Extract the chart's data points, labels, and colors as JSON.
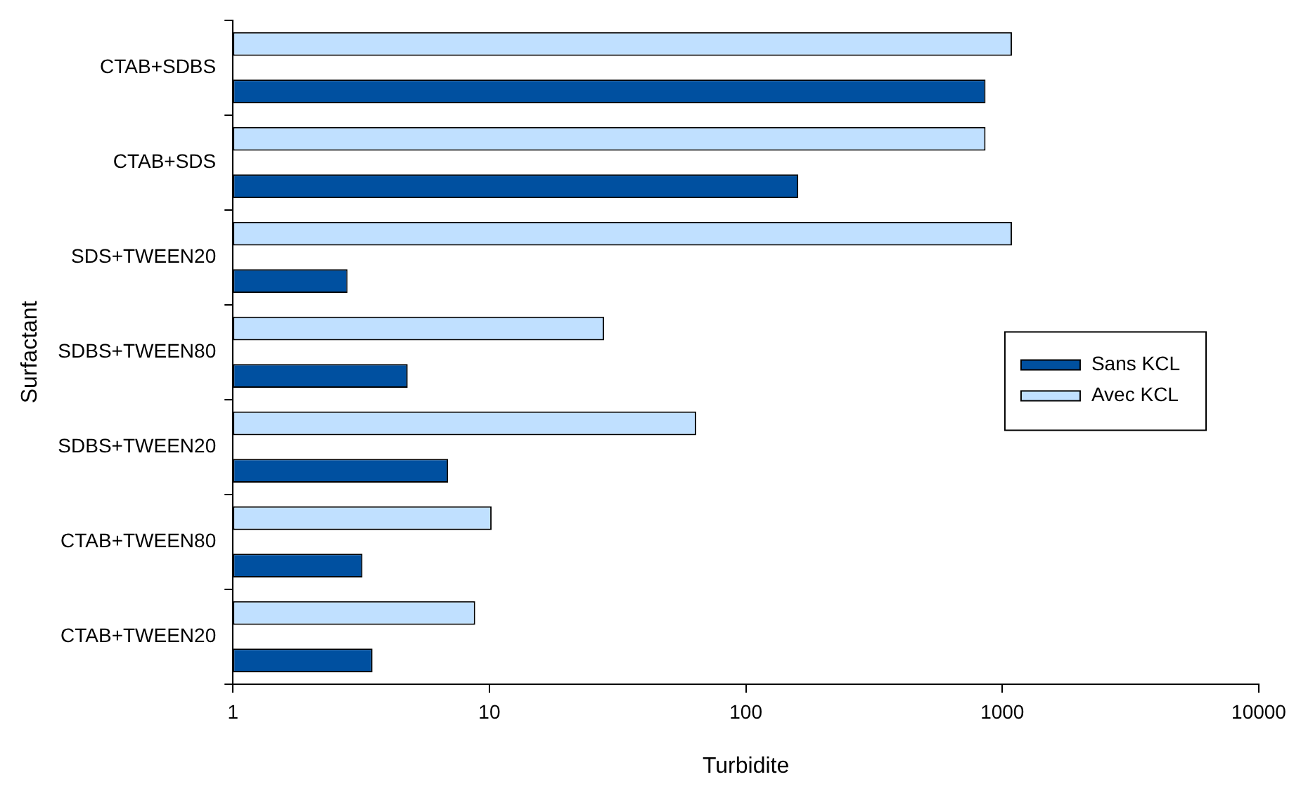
{
  "chart_data": {
    "type": "bar",
    "orientation": "horizontal",
    "log": "x",
    "xlabel": "Turbidite",
    "ylabel": "Surfactant",
    "categories": [
      "CTAB+SDBS",
      "CTAB+SDS",
      "SDS+TWEEN20",
      "SDBS+TWEEN80",
      "SDBS+TWEEN20",
      "CTAB+TWEEN80",
      "CTAB+TWEEN20"
    ],
    "series": [
      {
        "name": "Sans KCL",
        "color": "#0050a0",
        "values": [
          860,
          160,
          2.8,
          4.8,
          6.9,
          3.2,
          3.5
        ]
      },
      {
        "name": "Avec KCL",
        "color": "#c0e0ff",
        "values": [
          1090,
          860,
          1090,
          28,
          64,
          10.2,
          8.8
        ]
      }
    ],
    "xlim": [
      1,
      10000
    ],
    "xticks": [
      1,
      10,
      100,
      1000,
      10000
    ],
    "grid": false,
    "legend": "right"
  }
}
